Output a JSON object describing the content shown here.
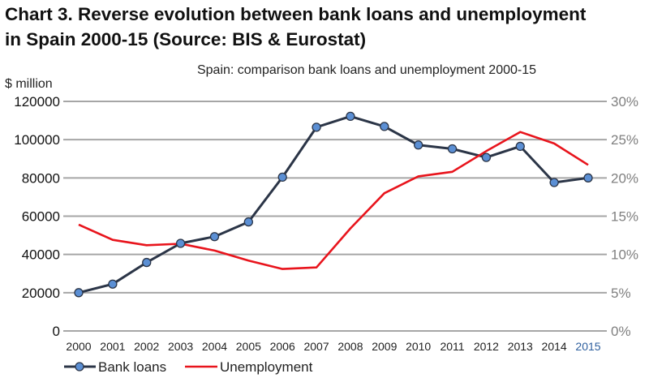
{
  "title_line1": "Chart 3. Reverse evolution between bank loans and unemployment",
  "title_line2": "in Spain 2000-15 (Source: BIS & Eurostat)",
  "colors": {
    "bank_loans_line": "#2b3547",
    "bank_loans_marker": "#5b8fd4",
    "unemployment_line": "#e8141c",
    "grid": "#a6a6a6",
    "right_axis_text": "#7f7f7f",
    "last_tick": "#2e5f9e"
  },
  "chart_data": {
    "type": "line",
    "title": "Spain: comparison bank loans and unemployment 2000-15",
    "left_unit_label": "$ million",
    "x": [
      "2000",
      "2001",
      "2002",
      "2003",
      "2004",
      "2005",
      "2006",
      "2007",
      "2008",
      "2009",
      "2010",
      "2011",
      "2012",
      "2013",
      "2014",
      "2015"
    ],
    "y_left_ticks": [
      "0",
      "20000",
      "40000",
      "60000",
      "80000",
      "100000",
      "120000"
    ],
    "y_left_range": [
      0,
      120000
    ],
    "y_right_ticks": [
      "0%",
      "5%",
      "10%",
      "15%",
      "20%",
      "25%",
      "30%"
    ],
    "y_right_range": [
      0,
      30
    ],
    "grid": true,
    "legend_position": "bottom-left",
    "series": [
      {
        "name": "Bank loans",
        "axis": "left",
        "marker": "circle",
        "values": [
          20000,
          24500,
          35800,
          45800,
          49300,
          57000,
          80400,
          106500,
          112200,
          106900,
          97200,
          95200,
          90700,
          96500,
          77600,
          80000
        ]
      },
      {
        "name": "Unemployment",
        "axis": "right",
        "marker": "none",
        "values": [
          13.9,
          11.9,
          11.2,
          11.4,
          10.5,
          9.2,
          8.1,
          8.3,
          13.4,
          18.0,
          20.2,
          20.8,
          23.5,
          26.0,
          24.5,
          21.7
        ]
      }
    ]
  }
}
